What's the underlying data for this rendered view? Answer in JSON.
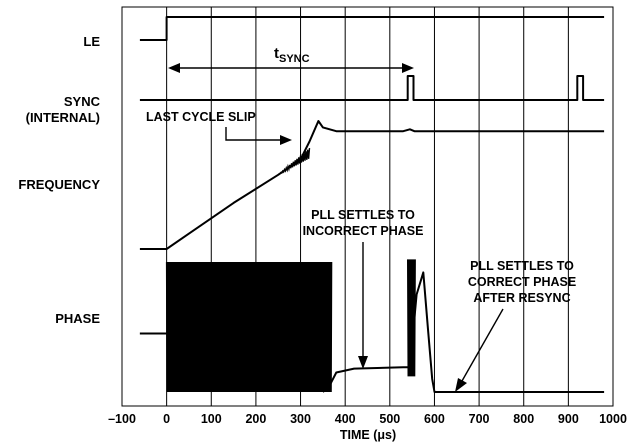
{
  "chart_data": {
    "type": "line",
    "title": "",
    "xlabel": "TIME (μs)",
    "xlim": [
      -100,
      1000
    ],
    "x_ticks": [
      -100,
      0,
      100,
      200,
      300,
      400,
      500,
      600,
      700,
      800,
      900,
      1000
    ],
    "x_tick_labels": [
      "–100",
      "0",
      "100",
      "200",
      "300",
      "400",
      "500",
      "600",
      "700",
      "800",
      "900",
      "1000"
    ],
    "grid": "vertical",
    "signal_labels": {
      "le": "LE",
      "sync_line1": "SYNC",
      "sync_line2": "(INTERNAL)",
      "frequency": "FREQUENCY",
      "phase": "PHASE"
    },
    "annotations": {
      "tsync_main": "t",
      "tsync_sub": "SYNC",
      "last_cycle_slip": "LAST CYCLE SLIP",
      "incorrect_line1": "PLL SETTLES TO",
      "incorrect_line2": "INCORRECT PHASE",
      "correct_line1": "PLL SETTLES TO",
      "correct_line2": "CORRECT PHASE",
      "correct_line3": "AFTER RESYNC"
    },
    "tsync_interval": [
      0,
      550
    ],
    "series": [
      {
        "id": "le",
        "points": [
          [
            -60,
            0
          ],
          [
            0,
            0
          ],
          [
            0,
            1
          ],
          [
            980,
            1
          ]
        ]
      },
      {
        "id": "sync",
        "points": [
          [
            -60,
            0
          ],
          [
            540,
            0
          ],
          [
            540,
            1
          ],
          [
            553,
            1
          ],
          [
            553,
            0
          ],
          [
            920,
            0
          ],
          [
            920,
            1
          ],
          [
            933,
            1
          ],
          [
            933,
            0
          ],
          [
            980,
            0
          ]
        ]
      },
      {
        "id": "frequency",
        "points": [
          [
            -60,
            0
          ],
          [
            0,
            0
          ],
          [
            50,
            0.12
          ],
          [
            150,
            0.36
          ],
          [
            250,
            0.58
          ],
          [
            300,
            0.7
          ],
          [
            320,
            0.84
          ],
          [
            340,
            1.0
          ],
          [
            350,
            0.95
          ],
          [
            380,
            0.92
          ],
          [
            530,
            0.92
          ],
          [
            545,
            0.935
          ],
          [
            555,
            0.92
          ],
          [
            980,
            0.92
          ]
        ]
      },
      {
        "id": "phase",
        "points": [
          [
            350,
            0
          ],
          [
            365,
            0.05
          ],
          [
            380,
            0.15
          ],
          [
            420,
            0.18
          ],
          [
            530,
            0.19
          ],
          [
            545,
            0.19
          ],
          [
            560,
            0.75
          ],
          [
            575,
            0.92
          ],
          [
            585,
            0.5
          ],
          [
            595,
            0.1
          ],
          [
            600,
            0.0
          ],
          [
            620,
            0.0
          ],
          [
            980,
            0.0
          ]
        ]
      }
    ],
    "phase_oscillation": {
      "x_range": [
        0,
        370
      ],
      "band": [
        0.0,
        1.0
      ]
    },
    "phase_burst": {
      "x_range": [
        540,
        557
      ]
    }
  }
}
